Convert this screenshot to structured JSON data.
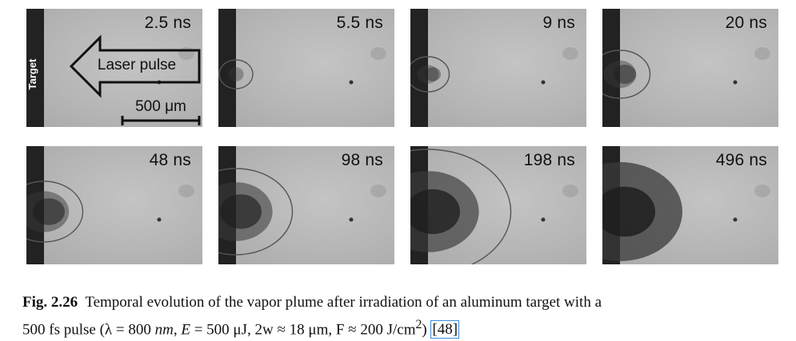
{
  "figure": {
    "frames_top": [
      {
        "time": "2.5 ns",
        "plume": 0.0,
        "core": 0.0,
        "shock": 0.0
      },
      {
        "time": "5.5 ns",
        "plume": 0.05,
        "core": 0.0,
        "shock": 0.1
      },
      {
        "time": "9 ns",
        "plume": 0.1,
        "core": 0.15,
        "shock": 0.15
      },
      {
        "time": "20 ns",
        "plume": 0.2,
        "core": 0.25,
        "shock": 0.25
      }
    ],
    "frames_bottom": [
      {
        "time": "48 ns",
        "plume": 0.35,
        "core": 0.4,
        "shock": 0.35
      },
      {
        "time": "98 ns",
        "plume": 0.55,
        "core": 0.55,
        "shock": 0.55
      },
      {
        "time": "198 ns",
        "plume": 0.8,
        "core": 0.75,
        "shock": 0.85
      },
      {
        "time": "496 ns",
        "plume": 1.0,
        "core": 0.85,
        "shock": 0.0
      }
    ],
    "annotations": {
      "target_label": "Target",
      "arrow_label": "Laser pulse",
      "scale_label": "500 μm"
    }
  },
  "caption": {
    "fig_label": "Fig. 2.26",
    "line1": "Temporal evolution of the vapor plume after irradiation of an aluminum target with a",
    "line2_pre": "500 fs pulse (λ = 800 ",
    "line2_nm": "nm",
    "line2_mid": ", ",
    "line2_E": "E",
    "line2_post": " = 500 μJ, 2w ≈ 18 μm, F ≈ 200 J/cm",
    "line2_sup": "2",
    "line2_close": ") ",
    "ref": "[48]"
  }
}
